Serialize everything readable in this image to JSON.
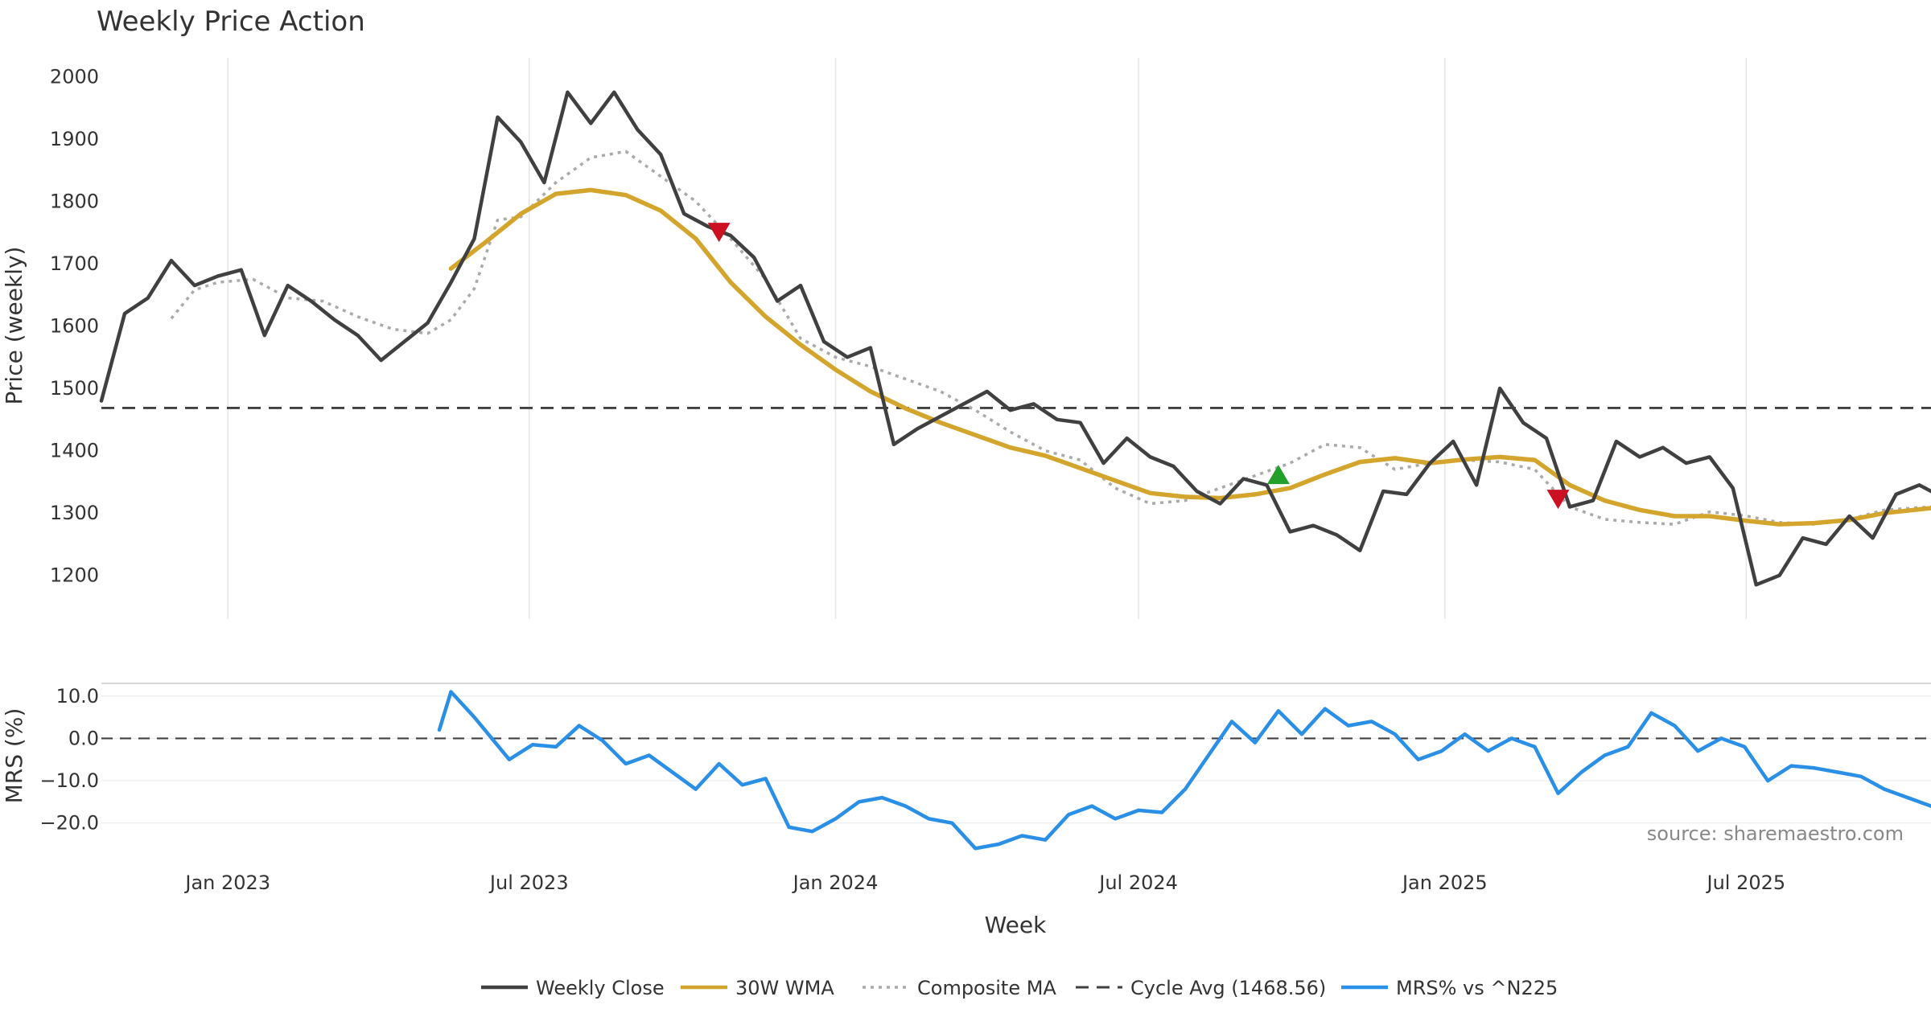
{
  "chart_data": {
    "type": "line",
    "title": "Weekly Price Action",
    "xlabel": "Week",
    "x_ticks": [
      "Jan 2023",
      "Jul 2023",
      "Jan 2024",
      "Jul 2024",
      "Jan 2025",
      "Jul 2025"
    ],
    "source": "source: sharemaestro.com",
    "price_panel": {
      "ylabel": "Price (weekly)",
      "ylim": [
        1130,
        2030
      ],
      "y_ticks": [
        "1200",
        "1300",
        "1400",
        "1500",
        "1600",
        "1700",
        "1800",
        "1900",
        "2000"
      ],
      "cycle_avg": 1468.56
    },
    "mrs_panel": {
      "ylabel": "MRS (%)",
      "ylim": [
        -25,
        13
      ],
      "y_ticks": [
        "−20.0",
        "−10.0",
        "0.0",
        "10.0"
      ]
    },
    "x_range": [
      "2022-10-17",
      "2025-10-20"
    ],
    "series": [
      {
        "name": "Weekly Close",
        "color": "#404040",
        "style": "solid",
        "x": [
          "2022-10-17",
          "2022-10-31",
          "2022-11-14",
          "2022-11-28",
          "2022-12-12",
          "2022-12-26",
          "2023-01-09",
          "2023-01-23",
          "2023-02-06",
          "2023-02-20",
          "2023-03-06",
          "2023-03-20",
          "2023-04-03",
          "2023-04-17",
          "2023-05-01",
          "2023-05-15",
          "2023-05-29",
          "2023-06-12",
          "2023-06-26",
          "2023-07-10",
          "2023-07-24",
          "2023-08-07",
          "2023-08-21",
          "2023-09-04",
          "2023-09-18",
          "2023-10-02",
          "2023-10-16",
          "2023-10-30",
          "2023-11-13",
          "2023-11-27",
          "2023-12-11",
          "2023-12-25",
          "2024-01-08",
          "2024-01-22",
          "2024-02-05",
          "2024-02-19",
          "2024-03-04",
          "2024-03-18",
          "2024-04-01",
          "2024-04-15",
          "2024-04-29",
          "2024-05-13",
          "2024-05-27",
          "2024-06-10",
          "2024-06-24",
          "2024-07-08",
          "2024-07-22",
          "2024-08-05",
          "2024-08-19",
          "2024-09-02",
          "2024-09-16",
          "2024-09-30",
          "2024-10-14",
          "2024-10-28",
          "2024-11-11",
          "2024-11-25",
          "2024-12-09",
          "2024-12-23",
          "2025-01-06",
          "2025-01-20",
          "2025-02-03",
          "2025-02-17",
          "2025-03-03",
          "2025-03-17",
          "2025-03-31",
          "2025-04-14",
          "2025-04-28",
          "2025-05-12",
          "2025-05-26",
          "2025-06-09",
          "2025-06-23",
          "2025-07-07",
          "2025-07-21",
          "2025-08-04",
          "2025-08-18",
          "2025-09-01",
          "2025-09-15",
          "2025-09-29",
          "2025-10-13",
          "2025-10-20"
        ],
        "values": [
          1480,
          1620,
          1645,
          1705,
          1665,
          1680,
          1690,
          1585,
          1665,
          1640,
          1610,
          1585,
          1545,
          1575,
          1605,
          1670,
          1740,
          1935,
          1895,
          1830,
          1975,
          1925,
          1975,
          1915,
          1875,
          1780,
          1760,
          1745,
          1710,
          1640,
          1665,
          1575,
          1550,
          1565,
          1410,
          1435,
          1455,
          1475,
          1495,
          1465,
          1475,
          1450,
          1445,
          1380,
          1420,
          1390,
          1375,
          1335,
          1315,
          1355,
          1345,
          1270,
          1280,
          1265,
          1240,
          1335,
          1330,
          1380,
          1415,
          1345,
          1500,
          1445,
          1420,
          1310,
          1320,
          1415,
          1390,
          1405,
          1380,
          1390,
          1340,
          1185,
          1200,
          1260,
          1250,
          1295,
          1260,
          1330,
          1345,
          1335
        ]
      },
      {
        "name": "30W WMA",
        "color": "#d4a52c",
        "style": "solid",
        "x": [
          "2023-05-15",
          "2023-06-05",
          "2023-06-26",
          "2023-07-17",
          "2023-08-07",
          "2023-08-28",
          "2023-09-18",
          "2023-10-09",
          "2023-10-30",
          "2023-11-20",
          "2023-12-11",
          "2024-01-01",
          "2024-01-22",
          "2024-02-12",
          "2024-03-04",
          "2024-03-25",
          "2024-04-15",
          "2024-05-06",
          "2024-05-27",
          "2024-06-17",
          "2024-07-08",
          "2024-07-29",
          "2024-08-19",
          "2024-09-09",
          "2024-09-30",
          "2024-10-21",
          "2024-11-11",
          "2024-12-02",
          "2024-12-23",
          "2025-01-13",
          "2025-02-03",
          "2025-02-24",
          "2025-03-17",
          "2025-04-07",
          "2025-04-28",
          "2025-05-19",
          "2025-06-09",
          "2025-06-30",
          "2025-07-21",
          "2025-08-11",
          "2025-09-01",
          "2025-09-22",
          "2025-10-20"
        ],
        "values": [
          1692,
          1735,
          1780,
          1812,
          1818,
          1810,
          1785,
          1740,
          1670,
          1615,
          1570,
          1530,
          1495,
          1468,
          1445,
          1425,
          1405,
          1392,
          1372,
          1352,
          1332,
          1326,
          1324,
          1330,
          1340,
          1362,
          1382,
          1388,
          1380,
          1386,
          1390,
          1385,
          1345,
          1320,
          1305,
          1295,
          1295,
          1288,
          1282,
          1284,
          1289,
          1300,
          1308
        ]
      },
      {
        "name": "Composite MA",
        "color": "#aaaaaa",
        "style": "dotted",
        "x": [
          "2022-11-28",
          "2022-12-12",
          "2022-12-26",
          "2023-01-16",
          "2023-02-06",
          "2023-02-27",
          "2023-03-20",
          "2023-04-10",
          "2023-05-01",
          "2023-05-15",
          "2023-05-29",
          "2023-06-12",
          "2023-06-26",
          "2023-07-17",
          "2023-08-07",
          "2023-08-28",
          "2023-09-18",
          "2023-10-09",
          "2023-10-30",
          "2023-11-20",
          "2023-12-11",
          "2024-01-01",
          "2024-01-22",
          "2024-02-12",
          "2024-03-04",
          "2024-03-25",
          "2024-04-15",
          "2024-05-06",
          "2024-05-27",
          "2024-06-17",
          "2024-07-08",
          "2024-07-29",
          "2024-08-19",
          "2024-09-09",
          "2024-09-30",
          "2024-10-21",
          "2024-11-11",
          "2024-12-02",
          "2024-12-23",
          "2025-01-13",
          "2025-02-03",
          "2025-02-24",
          "2025-03-17",
          "2025-04-07",
          "2025-04-28",
          "2025-05-19",
          "2025-06-09",
          "2025-06-30",
          "2025-07-21",
          "2025-08-11",
          "2025-09-01",
          "2025-09-22",
          "2025-10-20"
        ],
        "values": [
          1612,
          1658,
          1670,
          1675,
          1645,
          1640,
          1615,
          1595,
          1588,
          1610,
          1660,
          1770,
          1775,
          1830,
          1870,
          1880,
          1840,
          1800,
          1740,
          1675,
          1580,
          1550,
          1535,
          1515,
          1495,
          1465,
          1430,
          1400,
          1385,
          1340,
          1315,
          1320,
          1340,
          1360,
          1380,
          1410,
          1405,
          1370,
          1380,
          1385,
          1382,
          1370,
          1310,
          1290,
          1285,
          1282,
          1302,
          1296,
          1285,
          1282,
          1290,
          1305,
          1310
        ]
      },
      {
        "name": "MRS% vs ^N225",
        "color": "#2a8fe6",
        "style": "solid",
        "x": [
          "2023-05-08",
          "2023-05-15",
          "2023-05-29",
          "2023-06-19",
          "2023-07-03",
          "2023-07-17",
          "2023-07-31",
          "2023-08-14",
          "2023-08-28",
          "2023-09-11",
          "2023-09-25",
          "2023-10-09",
          "2023-10-23",
          "2023-11-06",
          "2023-11-20",
          "2023-12-04",
          "2023-12-18",
          "2024-01-01",
          "2024-01-15",
          "2024-01-29",
          "2024-02-12",
          "2024-02-26",
          "2024-03-11",
          "2024-03-25",
          "2024-04-08",
          "2024-04-22",
          "2024-05-06",
          "2024-05-20",
          "2024-06-03",
          "2024-06-17",
          "2024-07-01",
          "2024-07-15",
          "2024-07-29",
          "2024-08-12",
          "2024-08-26",
          "2024-09-09",
          "2024-09-23",
          "2024-10-07",
          "2024-10-21",
          "2024-11-04",
          "2024-11-18",
          "2024-12-02",
          "2024-12-16",
          "2024-12-30",
          "2025-01-13",
          "2025-01-27",
          "2025-02-10",
          "2025-02-24",
          "2025-03-10",
          "2025-03-24",
          "2025-04-07",
          "2025-04-21",
          "2025-05-05",
          "2025-05-19",
          "2025-06-02",
          "2025-06-16",
          "2025-06-30",
          "2025-07-14",
          "2025-07-28",
          "2025-08-11",
          "2025-08-25",
          "2025-09-08",
          "2025-09-22",
          "2025-10-06",
          "2025-10-20"
        ],
        "values": [
          2,
          11,
          5,
          -5,
          -1.5,
          -2,
          3,
          -0.5,
          -6,
          -4,
          -8,
          -12,
          -6,
          -11,
          -9.5,
          -21,
          -22,
          -19,
          -15,
          -14,
          -16,
          -19,
          -20,
          -26,
          -25,
          -23,
          -24,
          -18,
          -16,
          -19,
          -17,
          -17.5,
          -12,
          -4,
          4,
          -1,
          6.5,
          1,
          7,
          3,
          4,
          1,
          -5,
          -3,
          1,
          -3,
          0,
          -2,
          -13,
          -8,
          -4,
          -2,
          6,
          3,
          -3,
          0,
          -2,
          -10,
          -6.5,
          -7,
          -8,
          -9,
          -12,
          -14,
          -16
        ]
      }
    ],
    "markers": [
      {
        "type": "sell",
        "x": "2023-10-23",
        "y": 1750,
        "color": "#cc1122"
      },
      {
        "type": "buy",
        "x": "2024-09-23",
        "y": 1362,
        "color": "#22a02a"
      },
      {
        "type": "sell",
        "x": "2025-03-10",
        "y": 1322,
        "color": "#cc1122"
      }
    ],
    "legend": [
      {
        "label": "Weekly Close",
        "color": "#404040",
        "style": "solid"
      },
      {
        "label": "30W WMA",
        "color": "#d4a52c",
        "style": "solid"
      },
      {
        "label": "Composite MA",
        "color": "#aaaaaa",
        "style": "dotted"
      },
      {
        "label": "Cycle Avg (1468.56)",
        "color": "#404040",
        "style": "dashed"
      },
      {
        "label": "MRS% vs ^N225",
        "color": "#2a8fe6",
        "style": "solid"
      }
    ],
    "legend_position": "bottom-center",
    "grid": true
  }
}
